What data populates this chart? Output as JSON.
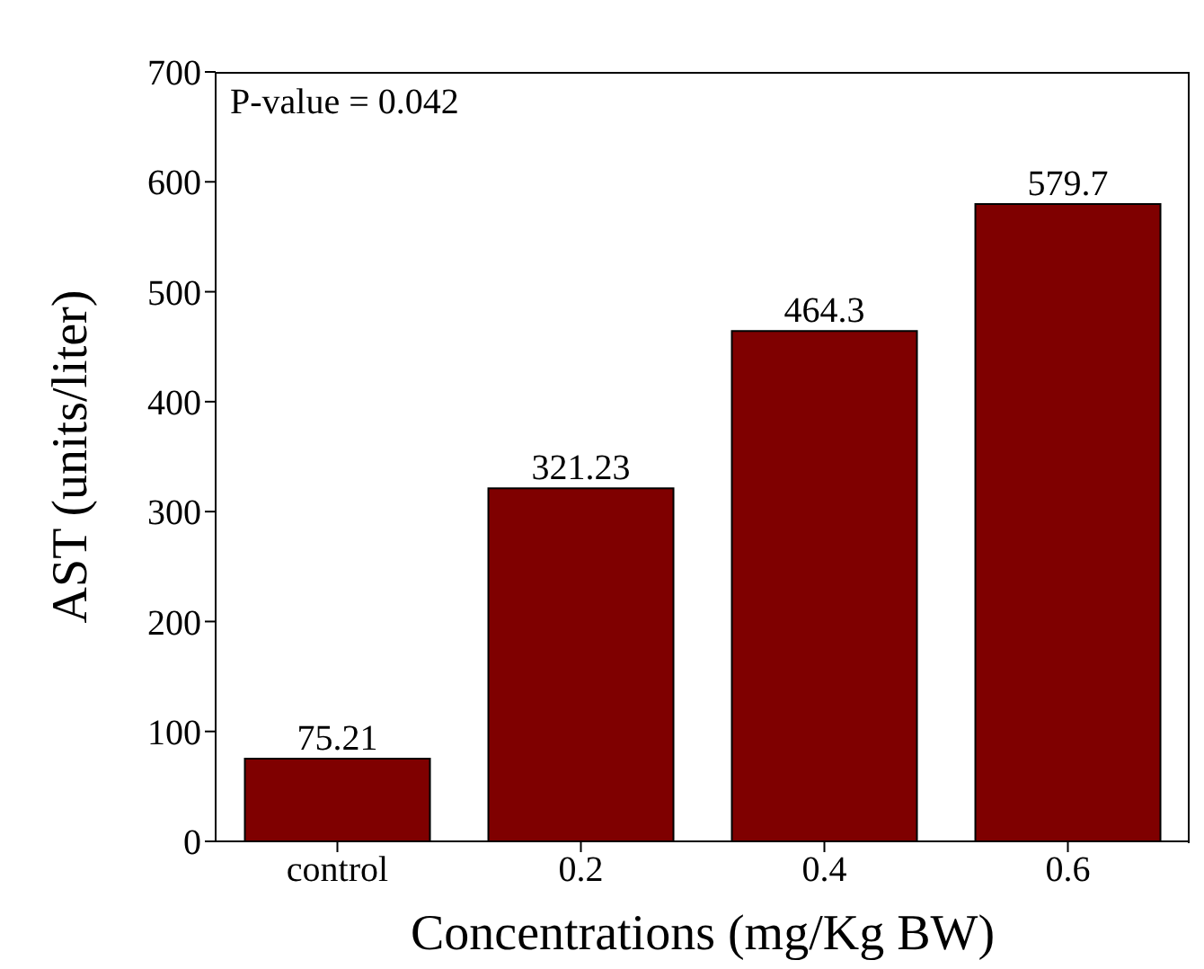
{
  "chart_data": {
    "type": "bar",
    "xlabel": "Concentrations (mg/Kg BW)",
    "ylabel": "AST (units/liter)",
    "categories": [
      "control",
      "0.2",
      "0.4",
      "0.6"
    ],
    "values": [
      75.21,
      321.23,
      464.3,
      579.7
    ],
    "color": "#7f0000",
    "ylim": [
      0,
      700
    ],
    "yticks": [
      0,
      100,
      200,
      300,
      400,
      500,
      600,
      700
    ],
    "data_labels": true,
    "grid": false,
    "legend": false,
    "annotations": [
      "P-value = 0.042"
    ]
  }
}
